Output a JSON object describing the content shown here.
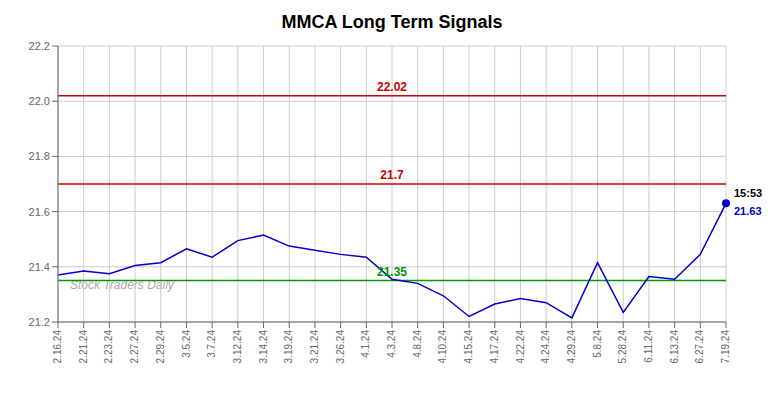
{
  "chart_data": {
    "type": "line",
    "title": "MMCA Long Term Signals",
    "categories": [
      "2.16.24",
      "2.21.24",
      "2.23.24",
      "2.27.24",
      "2.29.24",
      "3.5.24",
      "3.7.24",
      "3.12.24",
      "3.14.24",
      "3.19.24",
      "3.21.24",
      "3.26.24",
      "4.1.24",
      "4.3.24",
      "4.8.24",
      "4.10.24",
      "4.15.24",
      "4.17.24",
      "4.22.24",
      "4.24.24",
      "4.29.24",
      "5.8.24",
      "5.28.24",
      "6.11.24",
      "6.13.24",
      "6.27.24",
      "7.19.24"
    ],
    "values": [
      21.37,
      21.385,
      21.375,
      21.405,
      21.415,
      21.465,
      21.435,
      21.495,
      21.515,
      21.475,
      21.46,
      21.445,
      21.435,
      21.355,
      21.34,
      21.295,
      21.22,
      21.265,
      21.285,
      21.27,
      21.215,
      21.415,
      21.235,
      21.365,
      21.355,
      21.445,
      21.63
    ],
    "color": "#0000cc",
    "ylim": [
      21.2,
      22.2
    ],
    "yticks": [
      21.2,
      21.4,
      21.6,
      21.8,
      {
        "value": 22.0,
        "label": "22.0"
      },
      22.2
    ],
    "grid": true,
    "hlines": [
      {
        "value": 22.02,
        "label": "22.02",
        "color": "#cc0000"
      },
      {
        "value": 21.7,
        "label": "21.7",
        "color": "#cc0000"
      },
      {
        "value": 21.35,
        "label": "21.35",
        "color": "#009900"
      }
    ],
    "annotations": [
      {
        "text": "15:53",
        "color": "#000000"
      },
      {
        "text": "21.63",
        "color": "#0000cc"
      }
    ],
    "watermark": "Stock Traders Daily"
  }
}
